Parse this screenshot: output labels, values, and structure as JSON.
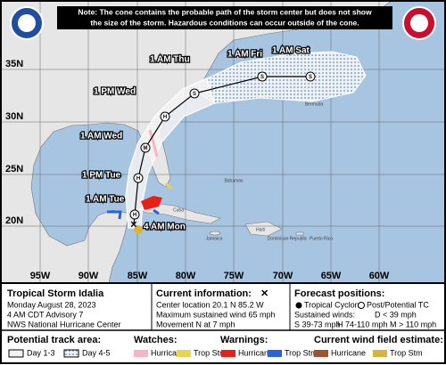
{
  "note": [
    "Note: The cone contains the probable path of the storm center but does not show",
    "the size of the storm. Hazardous conditions can occur outside of the cone."
  ],
  "latitudes": [
    "35N",
    "30N",
    "25N",
    "20N"
  ],
  "longitudes": [
    "95W",
    "90W",
    "85W",
    "80W",
    "75W",
    "70W",
    "65W",
    "60W"
  ],
  "places": [
    "Bermuda",
    "Bahamas",
    "Cuba",
    "Jamaica",
    "Haiti",
    "Dominican Republic",
    "Puerto Rico"
  ],
  "current_time": "4 AM Mon",
  "forecast_points": [
    {
      "time": "1 AM Tue",
      "symbol": "H"
    },
    {
      "time": "1 PM Tue",
      "symbol": "H"
    },
    {
      "time": "1 AM Wed",
      "symbol": "M"
    },
    {
      "time": "1 PM Wed",
      "symbol": "H"
    },
    {
      "time": "1 AM Thu",
      "symbol": "S"
    },
    {
      "time": "1 AM Fri",
      "symbol": "S"
    },
    {
      "time": "1 AM Sat",
      "symbol": "S"
    }
  ],
  "storm": {
    "name": "Tropical Storm Idalia",
    "date": "Monday August 28, 2023",
    "advisory": "4 AM CDT Advisory 7",
    "agency": "NWS National Hurricane Center"
  },
  "current": {
    "heading": "Current information:",
    "marker": "✕",
    "lines": [
      "Center location 20.1 N 85.2 W",
      "Maximum sustained wind 65 mph",
      "Movement N at 7 mph"
    ]
  },
  "forecast_key": {
    "heading": "Forecast positions:",
    "tropical": "Tropical Cyclone",
    "post": "Post/Potential TC",
    "winds": "Sustained winds:",
    "d": "D < 39 mph",
    "s": "S 39-73 mph",
    "h": "H 74-110 mph",
    "m": "M > 110 mph"
  },
  "legend": {
    "track": {
      "heading": "Potential track area:",
      "items": [
        "Day 1-3",
        "Day 4-5"
      ]
    },
    "watches": {
      "heading": "Watches:",
      "items": [
        "Hurricane",
        "Trop Stm"
      ]
    },
    "warnings": {
      "heading": "Warnings:",
      "items": [
        "Hurricane",
        "Trop Stm"
      ]
    },
    "wind_field": {
      "heading": "Current wind field estimate:",
      "items": [
        "Hurricane",
        "Trop Stm"
      ]
    }
  }
}
